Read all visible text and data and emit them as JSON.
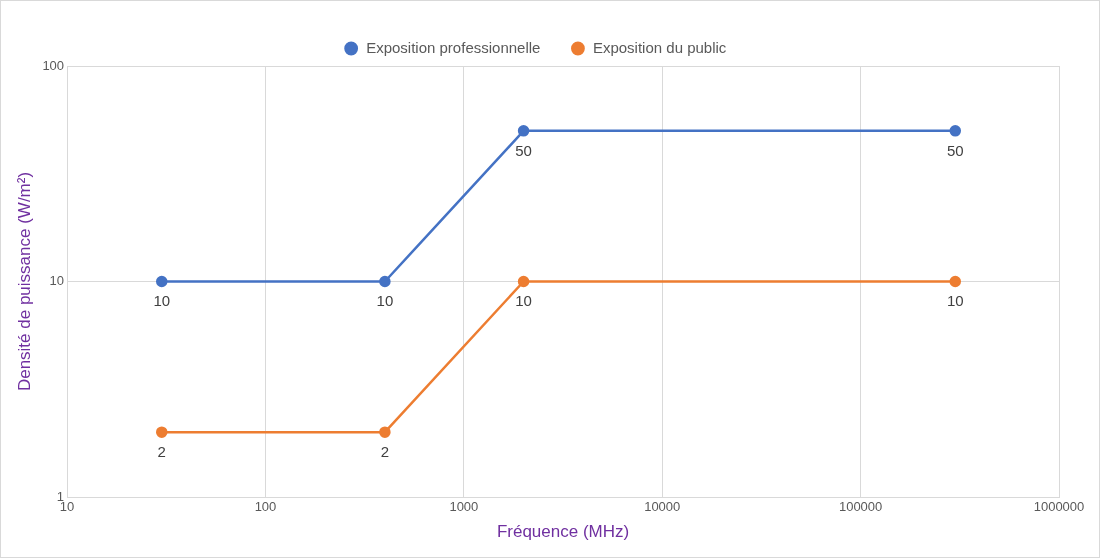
{
  "chart_data": {
    "type": "line",
    "xlabel": "Fréquence (MHz)",
    "ylabel": "Densité de puissance (W/m²)",
    "x": [
      30,
      400,
      2000,
      300000
    ],
    "series": [
      {
        "name": "Exposition professionnelle",
        "color": "#4472c4",
        "values": [
          10,
          10,
          50,
          50
        ]
      },
      {
        "name": "Exposition du public",
        "color": "#ed7d31",
        "values": [
          2,
          2,
          10,
          10
        ]
      }
    ],
    "log": "xy",
    "xlim": [
      10,
      1000000
    ],
    "xticks": [
      10,
      100,
      1000,
      10000,
      100000,
      1000000
    ],
    "ylim": [
      1,
      100
    ],
    "yticks": [
      1,
      10,
      100
    ],
    "grid": true,
    "legend": "top",
    "marker": "circle",
    "line_style": "solid",
    "data_labels": true
  }
}
